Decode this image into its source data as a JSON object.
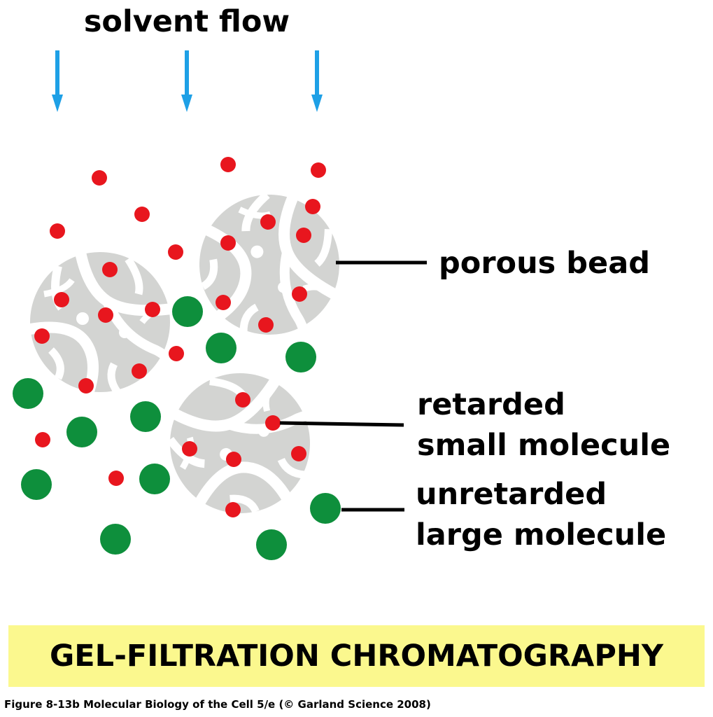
{
  "labels": {
    "solvent_flow": "solvent flow",
    "porous_bead": "porous bead",
    "retarded_line1": "retarded",
    "retarded_line2": "small molecule",
    "unretarded_line1": "unretarded",
    "unretarded_line2": "large molecule"
  },
  "banner": {
    "title": "GEL-FILTRATION CHROMATOGRAPHY"
  },
  "caption": "Figure 8-13b  Molecular Biology of the Cell 5/e (© Garland Science 2008)",
  "colors": {
    "arrow": "#1ea0e6",
    "small_molecule": "#e8161e",
    "large_molecule": "#0e8f3c",
    "bead": "#d3d4d2",
    "banner": "#fbf88e"
  },
  "icons": {
    "arrow": "down-arrow-icon",
    "bead": "porous-bead-icon",
    "small_molecule": "red-dot",
    "large_molecule": "green-dot"
  }
}
